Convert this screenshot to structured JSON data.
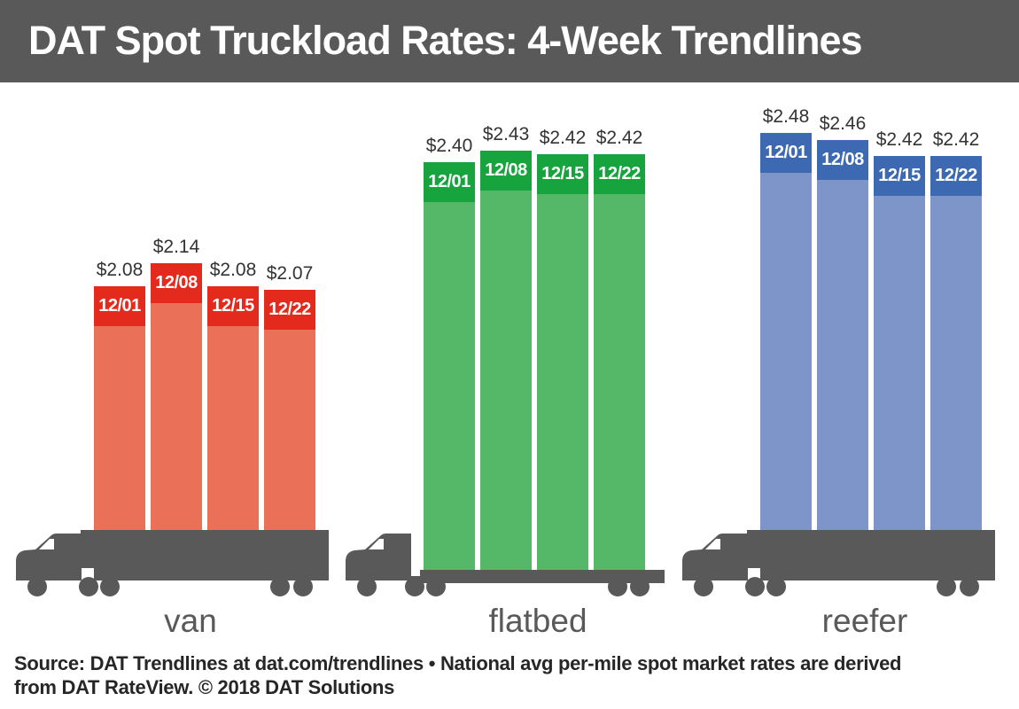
{
  "header": {
    "title": "DAT Spot Truckload Rates: 4-Week Trendlines"
  },
  "footer": {
    "line1": "Source: DAT Trendlines at dat.com/trendlines • National avg per-mile spot market rates are derived",
    "line2": "from DAT RateView. © 2018 DAT Solutions"
  },
  "colors": {
    "header_bg": "#595959",
    "truck": "#595959",
    "group_label_text": "#595959",
    "value_label_text": "#333333",
    "date_label_text": "#ffffff",
    "footer_text": "#262626",
    "background": "#ffffff"
  },
  "chart_data": {
    "type": "bar",
    "title": "DAT Spot Truckload Rates: 4-Week Trendlines",
    "categories": [
      "12/01",
      "12/08",
      "12/15",
      "12/22"
    ],
    "value_prefix": "$",
    "grid": false,
    "legend_position": "none",
    "series": [
      {
        "name": "van",
        "values": [
          2.08,
          2.14,
          2.08,
          2.07
        ],
        "value_labels": [
          "$2.08",
          "$2.14",
          "$2.08",
          "$2.07"
        ],
        "cap_color": "#e42a1d",
        "body_color": "#ea7058",
        "trailer_style": "box"
      },
      {
        "name": "flatbed",
        "values": [
          2.4,
          2.43,
          2.42,
          2.42
        ],
        "value_labels": [
          "$2.40",
          "$2.43",
          "$2.42",
          "$2.42"
        ],
        "cap_color": "#17a33e",
        "body_color": "#55b768",
        "trailer_style": "flatbed"
      },
      {
        "name": "reefer",
        "values": [
          2.48,
          2.46,
          2.42,
          2.42
        ],
        "value_labels": [
          "$2.48",
          "$2.46",
          "$2.42",
          "$2.42"
        ],
        "cap_color": "#3c69b2",
        "body_color": "#7e95c9",
        "trailer_style": "box"
      }
    ],
    "source_note": "Source: DAT Trendlines at dat.com/trendlines • National avg per-mile spot market rates are derived from DAT RateView. © 2018 DAT Solutions"
  }
}
